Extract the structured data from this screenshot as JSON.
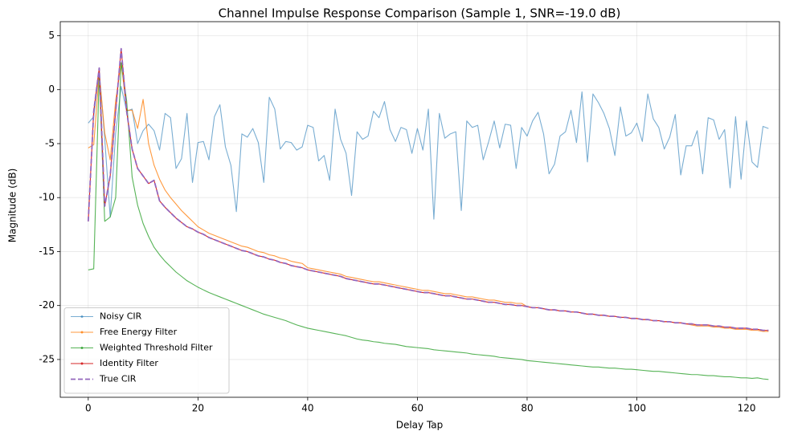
{
  "chart_data": {
    "type": "line",
    "title": "Channel Impulse Response Comparison (Sample 1, SNR=-19.0 dB)",
    "x_label": "Delay Tap",
    "y_label": "Magnitude (dB)",
    "xlim": [
      -5.1,
      126
    ],
    "ylim": [
      -28.5,
      6.3
    ],
    "xticks": [
      0,
      20,
      40,
      60,
      80,
      100,
      120
    ],
    "yticks": [
      -25,
      -20,
      -15,
      -10,
      -5,
      0,
      5
    ],
    "grid": true,
    "legend": "lower left",
    "x": [
      0,
      1,
      2,
      3,
      4,
      5,
      6,
      7,
      8,
      9,
      10,
      11,
      12,
      13,
      14,
      15,
      16,
      17,
      18,
      19,
      20,
      21,
      22,
      23,
      24,
      25,
      26,
      27,
      28,
      29,
      30,
      31,
      32,
      33,
      34,
      35,
      36,
      37,
      38,
      39,
      40,
      41,
      42,
      43,
      44,
      45,
      46,
      47,
      48,
      49,
      50,
      51,
      52,
      53,
      54,
      55,
      56,
      57,
      58,
      59,
      60,
      61,
      62,
      63,
      64,
      65,
      66,
      67,
      68,
      69,
      70,
      71,
      72,
      73,
      74,
      75,
      76,
      77,
      78,
      79,
      80,
      81,
      82,
      83,
      84,
      85,
      86,
      87,
      88,
      89,
      90,
      91,
      92,
      93,
      94,
      95,
      96,
      97,
      98,
      99,
      100,
      101,
      102,
      103,
      104,
      105,
      106,
      107,
      108,
      109,
      110,
      111,
      112,
      113,
      114,
      115,
      116,
      117,
      118,
      119,
      120,
      121,
      122,
      123,
      124
    ],
    "series": [
      {
        "name": "Noisy CIR",
        "color": "#1f77b4",
        "alpha": 0.6,
        "linestyle": "solid",
        "values": [
          -3.1,
          -2.5,
          1.8,
          -4.5,
          -11.8,
          -4.0,
          0.3,
          -2.0,
          -1.8,
          -5.0,
          -3.8,
          -3.2,
          -3.8,
          -5.6,
          -2.2,
          -2.6,
          -7.3,
          -6.4,
          -2.2,
          -8.6,
          -4.9,
          -4.8,
          -6.5,
          -2.5,
          -1.4,
          -5.3,
          -7.0,
          -11.3,
          -4.1,
          -4.4,
          -3.6,
          -4.9,
          -8.6,
          -0.7,
          -1.8,
          -5.5,
          -4.8,
          -4.9,
          -5.6,
          -5.3,
          -3.3,
          -3.5,
          -6.6,
          -6.1,
          -8.4,
          -1.8,
          -4.6,
          -5.9,
          -9.8,
          -3.9,
          -4.6,
          -4.3,
          -2.0,
          -2.6,
          -1.1,
          -3.7,
          -4.8,
          -3.5,
          -3.7,
          -5.9,
          -3.6,
          -5.6,
          -1.8,
          -12.0,
          -2.2,
          -4.5,
          -4.1,
          -3.9,
          -11.2,
          -2.9,
          -3.5,
          -3.3,
          -6.5,
          -4.8,
          -2.9,
          -5.4,
          -3.2,
          -3.3,
          -7.3,
          -3.5,
          -4.3,
          -2.9,
          -2.1,
          -4.1,
          -7.8,
          -6.9,
          -4.3,
          -3.9,
          -1.9,
          -4.9,
          -0.2,
          -6.7,
          -0.4,
          -1.2,
          -2.2,
          -3.6,
          -6.1,
          -1.6,
          -4.3,
          -4.0,
          -3.1,
          -4.8,
          -0.4,
          -2.7,
          -3.5,
          -5.5,
          -4.4,
          -2.3,
          -7.9,
          -5.2,
          -5.2,
          -3.8,
          -7.8,
          -2.6,
          -2.8,
          -4.6,
          -3.7,
          -9.1,
          -2.5,
          -8.3,
          -2.9,
          -6.7,
          -7.2,
          -3.4,
          -3.6
        ]
      },
      {
        "name": "Free Energy Filter",
        "color": "#ff7f0e",
        "alpha": 0.8,
        "linestyle": "solid",
        "values": [
          -5.4,
          -5.1,
          1.5,
          -4.0,
          -6.5,
          -1.0,
          2.5,
          -1.9,
          -1.9,
          -3.6,
          -0.9,
          -5.0,
          -7.0,
          -8.3,
          -9.3,
          -10.0,
          -10.6,
          -11.2,
          -11.7,
          -12.2,
          -12.7,
          -13.0,
          -13.3,
          -13.5,
          -13.7,
          -13.9,
          -14.1,
          -14.3,
          -14.5,
          -14.6,
          -14.8,
          -15.0,
          -15.1,
          -15.3,
          -15.4,
          -15.6,
          -15.7,
          -15.9,
          -16.0,
          -16.1,
          -16.5,
          -16.6,
          -16.7,
          -16.8,
          -16.9,
          -17.0,
          -17.1,
          -17.3,
          -17.4,
          -17.5,
          -17.6,
          -17.7,
          -17.8,
          -17.8,
          -17.9,
          -18.0,
          -18.1,
          -18.2,
          -18.3,
          -18.4,
          -18.5,
          -18.6,
          -18.6,
          -18.7,
          -18.8,
          -18.9,
          -18.9,
          -19.0,
          -19.1,
          -19.2,
          -19.2,
          -19.3,
          -19.4,
          -19.5,
          -19.5,
          -19.6,
          -19.7,
          -19.7,
          -19.8,
          -19.8,
          -20.1,
          -20.2,
          -20.2,
          -20.3,
          -20.4,
          -20.4,
          -20.5,
          -20.5,
          -20.6,
          -20.6,
          -20.7,
          -20.8,
          -20.8,
          -20.9,
          -20.9,
          -21.0,
          -21.0,
          -21.1,
          -21.1,
          -21.2,
          -21.2,
          -21.3,
          -21.3,
          -21.4,
          -21.4,
          -21.5,
          -21.5,
          -21.6,
          -21.6,
          -21.7,
          -21.8,
          -21.9,
          -21.9,
          -21.9,
          -22.0,
          -22.0,
          -22.1,
          -22.1,
          -22.2,
          -22.2,
          -22.2,
          -22.3,
          -22.3,
          -22.4,
          -22.4
        ]
      },
      {
        "name": "Weighted Threshold Filter",
        "color": "#2ca02c",
        "alpha": 0.8,
        "linestyle": "solid",
        "values": [
          -16.7,
          -16.6,
          1.5,
          -12.2,
          -11.8,
          -10.0,
          2.5,
          -1.0,
          -8.1,
          -10.7,
          -12.4,
          -13.6,
          -14.6,
          -15.3,
          -15.9,
          -16.4,
          -16.9,
          -17.3,
          -17.7,
          -18.0,
          -18.3,
          -18.55,
          -18.8,
          -19.0,
          -19.2,
          -19.4,
          -19.6,
          -19.8,
          -20.0,
          -20.2,
          -20.4,
          -20.6,
          -20.8,
          -20.95,
          -21.1,
          -21.25,
          -21.4,
          -21.6,
          -21.8,
          -21.95,
          -22.1,
          -22.2,
          -22.3,
          -22.4,
          -22.5,
          -22.6,
          -22.7,
          -22.8,
          -22.95,
          -23.1,
          -23.2,
          -23.25,
          -23.35,
          -23.4,
          -23.5,
          -23.55,
          -23.6,
          -23.7,
          -23.8,
          -23.85,
          -23.9,
          -23.95,
          -24.0,
          -24.1,
          -24.15,
          -24.2,
          -24.25,
          -24.3,
          -24.35,
          -24.4,
          -24.5,
          -24.55,
          -24.6,
          -24.65,
          -24.7,
          -24.8,
          -24.85,
          -24.9,
          -24.95,
          -25.0,
          -25.1,
          -25.15,
          -25.2,
          -25.25,
          -25.3,
          -25.35,
          -25.4,
          -25.45,
          -25.5,
          -25.55,
          -25.6,
          -25.65,
          -25.7,
          -25.7,
          -25.75,
          -25.8,
          -25.8,
          -25.85,
          -25.9,
          -25.9,
          -25.95,
          -26.0,
          -26.05,
          -26.1,
          -26.1,
          -26.15,
          -26.2,
          -26.25,
          -26.3,
          -26.35,
          -26.4,
          -26.4,
          -26.45,
          -26.5,
          -26.5,
          -26.55,
          -26.6,
          -26.6,
          -26.65,
          -26.7,
          -26.7,
          -26.75,
          -26.7,
          -26.8,
          -26.85
        ]
      },
      {
        "name": "Identity Filter",
        "color": "#d62728",
        "alpha": 1,
        "linestyle": "solid",
        "values": [
          -12.2,
          -2.0,
          2.0,
          -10.8,
          -8.0,
          -2.0,
          3.8,
          -2.0,
          -5.5,
          -7.3,
          -8.0,
          -8.7,
          -8.4,
          -10.3,
          -10.9,
          -11.4,
          -11.9,
          -12.3,
          -12.7,
          -12.9,
          -13.2,
          -13.4,
          -13.7,
          -13.9,
          -14.1,
          -14.3,
          -14.5,
          -14.7,
          -14.9,
          -15.0,
          -15.2,
          -15.4,
          -15.5,
          -15.7,
          -15.8,
          -16.0,
          -16.1,
          -16.3,
          -16.4,
          -16.5,
          -16.7,
          -16.8,
          -16.9,
          -17.0,
          -17.1,
          -17.2,
          -17.3,
          -17.5,
          -17.6,
          -17.7,
          -17.8,
          -17.9,
          -18.0,
          -18.0,
          -18.1,
          -18.2,
          -18.3,
          -18.4,
          -18.5,
          -18.6,
          -18.7,
          -18.8,
          -18.8,
          -18.9,
          -19.0,
          -19.1,
          -19.1,
          -19.2,
          -19.3,
          -19.4,
          -19.4,
          -19.5,
          -19.6,
          -19.7,
          -19.7,
          -19.8,
          -19.9,
          -19.9,
          -20.0,
          -20.0,
          -20.1,
          -20.2,
          -20.2,
          -20.3,
          -20.4,
          -20.4,
          -20.5,
          -20.5,
          -20.6,
          -20.6,
          -20.7,
          -20.8,
          -20.8,
          -20.9,
          -20.9,
          -21.0,
          -21.0,
          -21.1,
          -21.1,
          -21.2,
          -21.2,
          -21.3,
          -21.3,
          -21.4,
          -21.4,
          -21.5,
          -21.5,
          -21.6,
          -21.6,
          -21.7,
          -21.7,
          -21.8,
          -21.8,
          -21.8,
          -21.9,
          -21.9,
          -22.0,
          -22.0,
          -22.1,
          -22.1,
          -22.1,
          -22.2,
          -22.2,
          -22.3,
          -22.3
        ]
      },
      {
        "name": "True CIR",
        "color": "#9467bd",
        "alpha": 1,
        "linestyle": "dashed",
        "values": [
          -12.2,
          -2.0,
          2.0,
          -10.8,
          -8.0,
          -2.0,
          3.8,
          -2.0,
          -5.5,
          -7.3,
          -8.0,
          -8.7,
          -8.4,
          -10.3,
          -10.9,
          -11.4,
          -11.9,
          -12.3,
          -12.7,
          -12.9,
          -13.2,
          -13.4,
          -13.7,
          -13.9,
          -14.1,
          -14.3,
          -14.5,
          -14.7,
          -14.9,
          -15.0,
          -15.2,
          -15.4,
          -15.5,
          -15.7,
          -15.8,
          -16.0,
          -16.1,
          -16.3,
          -16.4,
          -16.5,
          -16.7,
          -16.8,
          -16.9,
          -17.0,
          -17.1,
          -17.2,
          -17.3,
          -17.5,
          -17.6,
          -17.7,
          -17.8,
          -17.9,
          -18.0,
          -18.0,
          -18.1,
          -18.2,
          -18.3,
          -18.4,
          -18.5,
          -18.6,
          -18.7,
          -18.8,
          -18.8,
          -18.9,
          -19.0,
          -19.1,
          -19.1,
          -19.2,
          -19.3,
          -19.4,
          -19.4,
          -19.5,
          -19.6,
          -19.7,
          -19.7,
          -19.8,
          -19.9,
          -19.9,
          -20.0,
          -20.0,
          -20.1,
          -20.2,
          -20.2,
          -20.3,
          -20.4,
          -20.4,
          -20.5,
          -20.5,
          -20.6,
          -20.6,
          -20.7,
          -20.8,
          -20.8,
          -20.9,
          -20.9,
          -21.0,
          -21.0,
          -21.1,
          -21.1,
          -21.2,
          -21.2,
          -21.3,
          -21.3,
          -21.4,
          -21.4,
          -21.5,
          -21.5,
          -21.6,
          -21.6,
          -21.7,
          -21.7,
          -21.8,
          -21.8,
          -21.8,
          -21.9,
          -21.9,
          -22.0,
          -22.0,
          -22.1,
          -22.1,
          -22.1,
          -22.2,
          -22.2,
          -22.3,
          -22.3
        ]
      }
    ]
  }
}
